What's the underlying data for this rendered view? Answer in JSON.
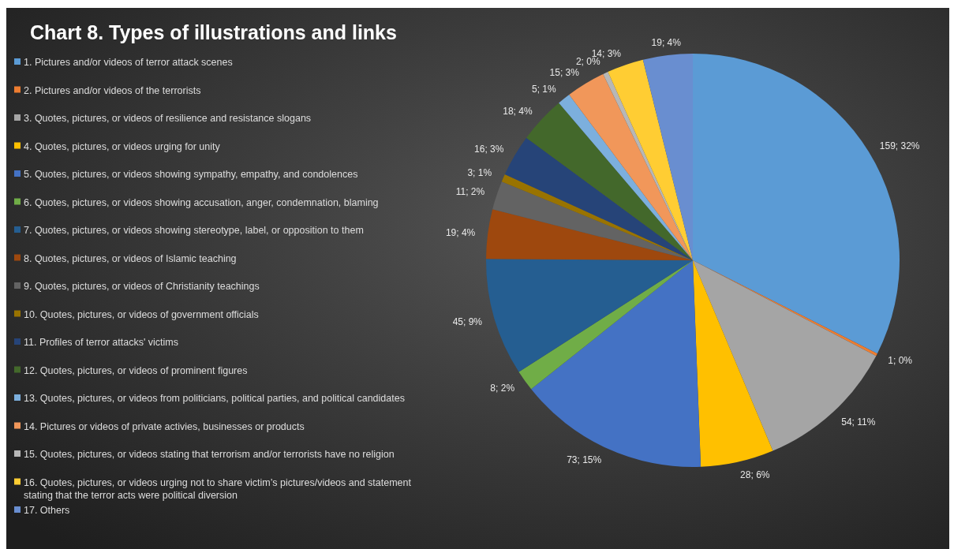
{
  "chart_data": {
    "type": "pie",
    "title": "Chart 8. Types of illustrations and links",
    "categories": [
      "1. Pictures and/or videos of terror attack scenes",
      "2. Pictures and/or videos of the terrorists",
      "3. Quotes, pictures, or videos of resilience and resistance slogans",
      "4. Quotes, pictures, or videos urging for unity",
      "5. Quotes, pictures, or videos showing sympathy, empathy, and condolences",
      "6. Quotes, pictures, or videos showing accusation, anger, condemnation, blaming",
      "7. Quotes, pictures, or videos showing stereotype, label, or opposition to them",
      "8. Quotes, pictures, or videos of Islamic teaching",
      "9. Quotes, pictures, or videos of Christianity teachings",
      "10. Quotes, pictures, or videos of government officials",
      "11. Profiles of terror attacks' victims",
      "12. Quotes, pictures, or videos of prominent figures",
      "13. Quotes, pictures, or videos from politicians, political parties, and political candidates",
      "14. Pictures or videos of private activies, businesses or products",
      "15. Quotes, pictures, or videos stating that terrorism and/or terrorists have no religion",
      "16. Quotes, pictures, or videos urging not to share victim’s pictures/videos and statement stating that the terror acts were political diversion",
      "17. Others"
    ],
    "values": [
      159,
      1,
      54,
      28,
      73,
      8,
      45,
      19,
      11,
      3,
      16,
      18,
      5,
      15,
      2,
      14,
      19
    ],
    "value_labels": [
      "159; 32%",
      "1; 0%",
      "54; 11%",
      "28; 6%",
      "73; 15%",
      "8; 2%",
      "45; 9%",
      "19; 4%",
      "11; 2%",
      "3; 1%",
      "16; 3%",
      "18; 4%",
      "5; 1%",
      "15; 3%",
      "2; 0%",
      "14; 3%",
      "19; 4%"
    ],
    "colors": [
      "#5b9bd5",
      "#ed7d31",
      "#a5a5a5",
      "#ffc000",
      "#4472c4",
      "#70ad47",
      "#255e91",
      "#9e480e",
      "#636363",
      "#997300",
      "#264478",
      "#43682b",
      "#7cafdd",
      "#f1975a",
      "#b7b7b7",
      "#ffcd33",
      "#698ed0"
    ],
    "legend": "left"
  }
}
